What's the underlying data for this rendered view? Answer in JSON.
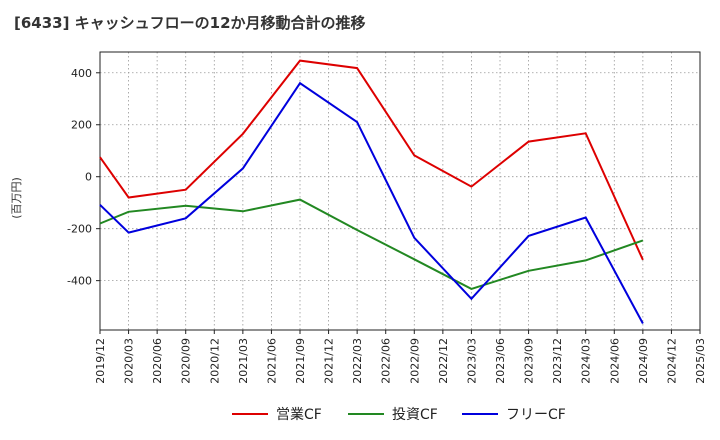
{
  "chart_data": {
    "type": "line",
    "title": "[6433]  キャッシュフローの12か月移動合計の推移",
    "ylabel": "(百万円)",
    "xlabel": "",
    "ylim": [
      -590,
      480
    ],
    "yticks": [
      -400,
      -200,
      0,
      200,
      400
    ],
    "x_ticks": [
      "2019/12",
      "2020/03",
      "2020/06",
      "2020/09",
      "2020/12",
      "2021/03",
      "2021/06",
      "2021/09",
      "2021/12",
      "2022/03",
      "2022/06",
      "2022/09",
      "2022/12",
      "2023/03",
      "2023/06",
      "2023/09",
      "2023/12",
      "2024/03",
      "2024/06",
      "2024/09",
      "2024/12",
      "2025/03"
    ],
    "x": [
      "2019/12",
      "2020/03",
      "2020/09",
      "2021/03",
      "2021/09",
      "2022/03",
      "2022/09",
      "2023/03",
      "2023/09",
      "2024/03",
      "2024/09"
    ],
    "series": [
      {
        "name": "営業CF",
        "color": "#dd0000",
        "values": [
          75,
          -80,
          -50,
          165,
          447,
          418,
          82,
          -38,
          135,
          167,
          -320
        ]
      },
      {
        "name": "投資CF",
        "color": "#228822",
        "values": [
          -180,
          -135,
          -112,
          -133,
          -88,
          -205,
          -318,
          -432,
          -362,
          -322,
          -245
        ]
      },
      {
        "name": "フリーCF",
        "color": "#0000dd",
        "values": [
          -108,
          -215,
          -160,
          32,
          360,
          210,
          -235,
          -470,
          -228,
          -157,
          -565
        ]
      }
    ],
    "grid": true,
    "legend_position": "bottom"
  }
}
